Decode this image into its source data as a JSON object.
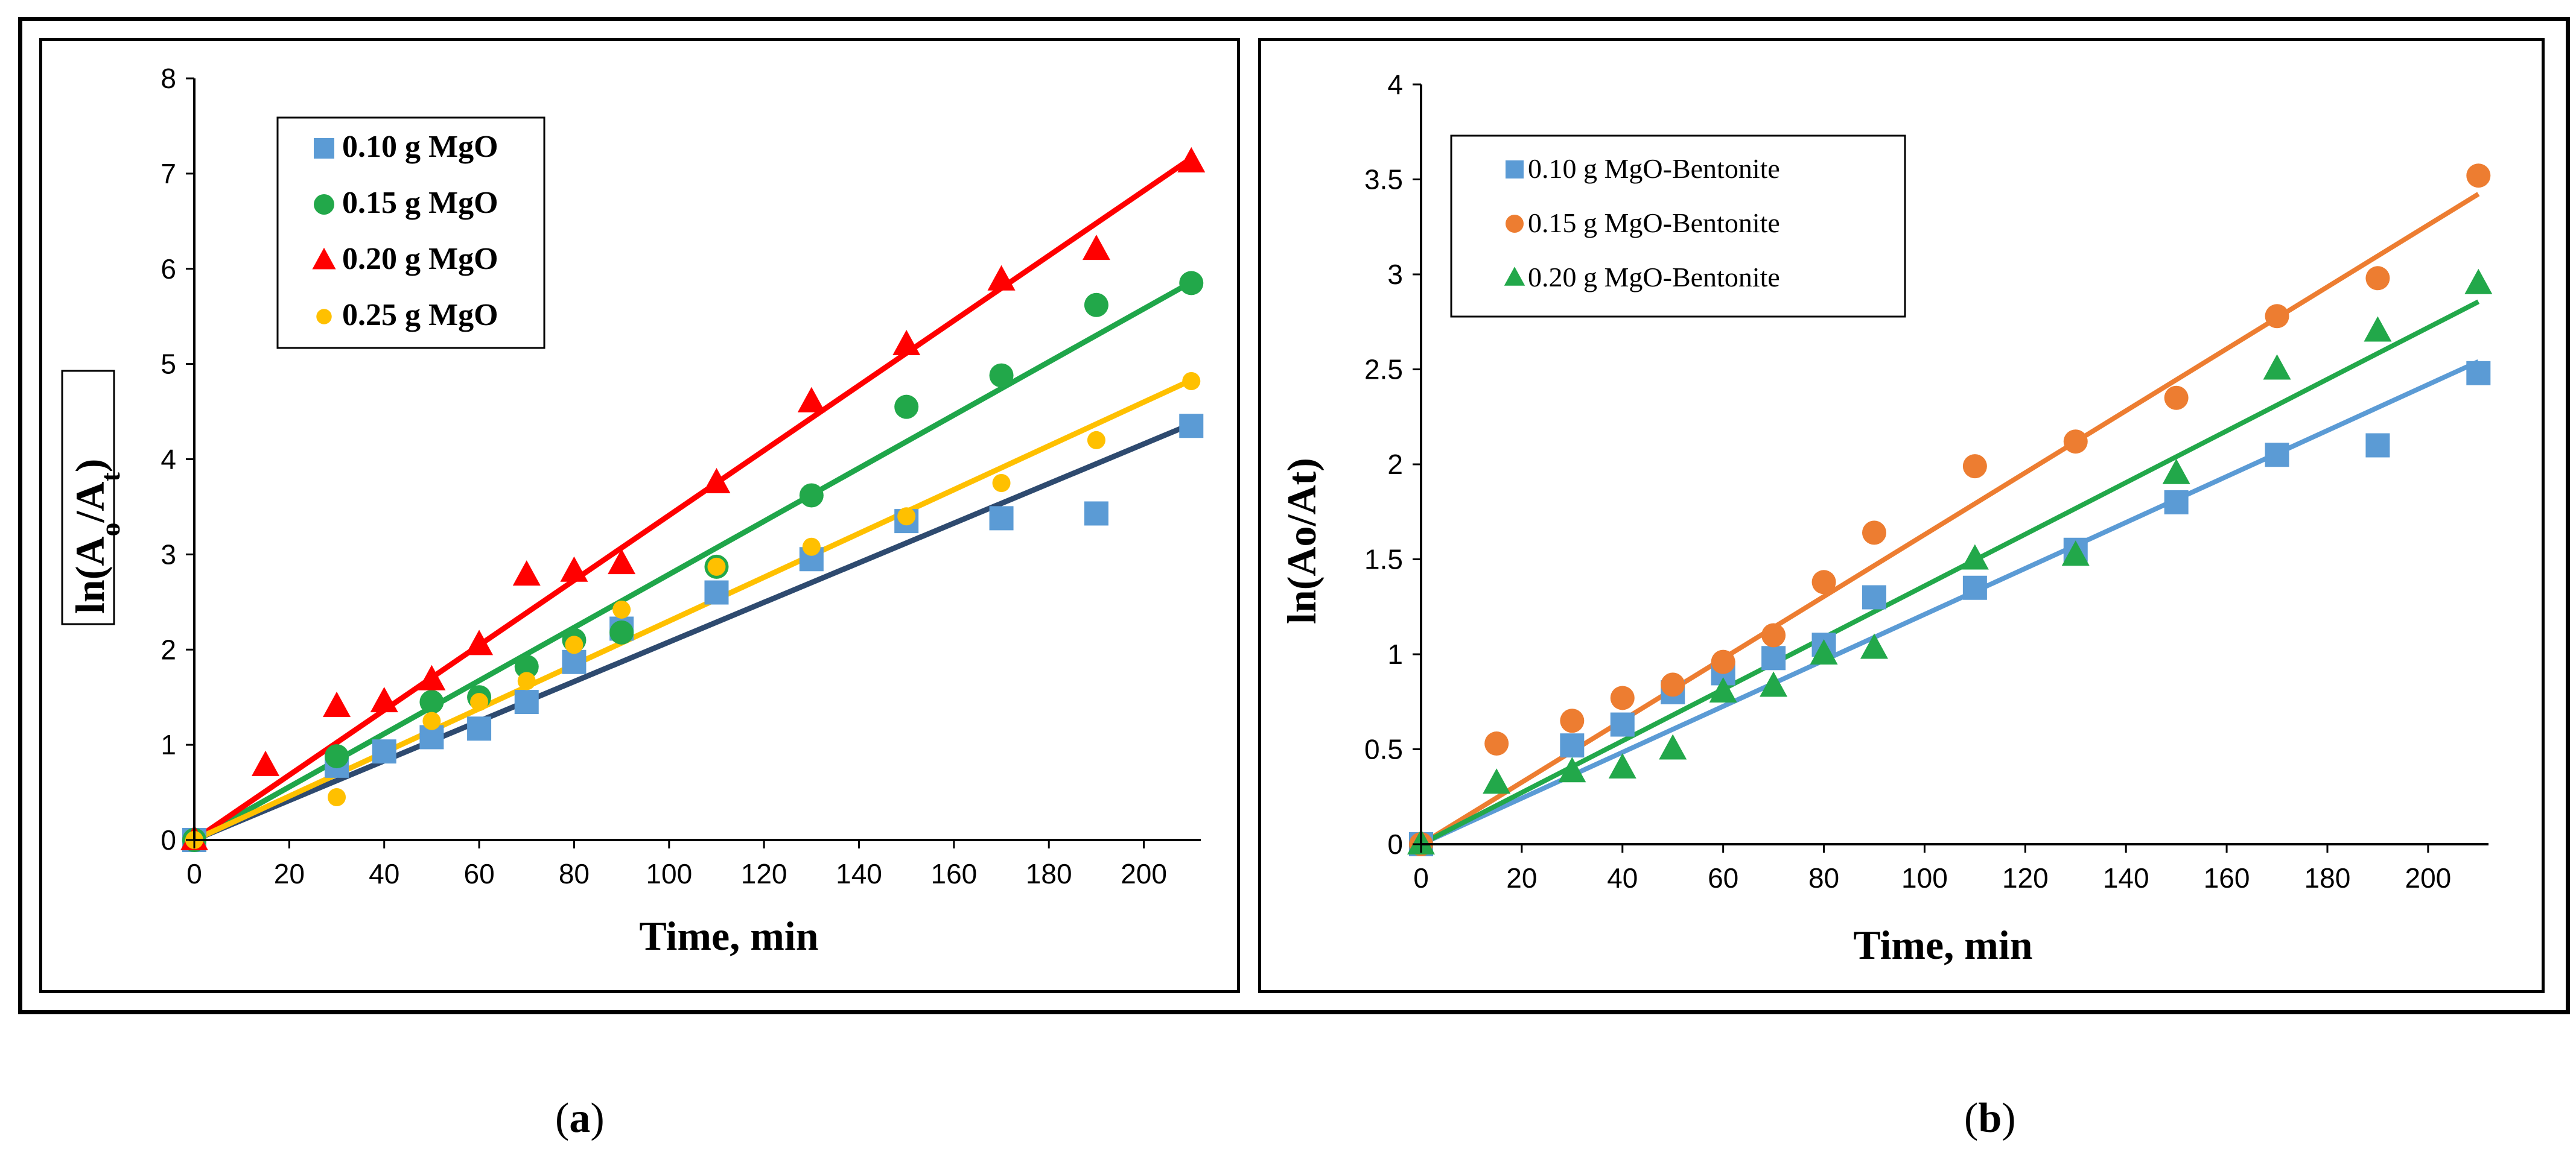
{
  "chart_data": [
    {
      "id": "a",
      "type": "scatter",
      "caption": {
        "open": "(",
        "letter": "a",
        "close": ")"
      },
      "xlabel": "Time, min",
      "ylabel": {
        "base": "ln(A",
        "sub1": "o",
        "mid": "/A",
        "sub2": "t",
        "end": ")"
      },
      "xlim": [
        0,
        212
      ],
      "ylim": [
        0,
        8
      ],
      "xticks": [
        0,
        20,
        40,
        60,
        80,
        100,
        120,
        140,
        160,
        180,
        200
      ],
      "yticks": [
        0,
        1,
        2,
        3,
        4,
        5,
        6,
        7,
        8
      ],
      "legend_position": "top-left",
      "series": [
        {
          "name": "0.10 g MgO",
          "marker": "square",
          "color": "#5B9BD5",
          "line_color": "#2E4A6F",
          "x": [
            0,
            30,
            40,
            50,
            60,
            70,
            80,
            90,
            110,
            130,
            150,
            170,
            190,
            210
          ],
          "y": [
            0,
            0.78,
            0.93,
            1.08,
            1.17,
            1.45,
            1.87,
            2.22,
            2.6,
            2.95,
            3.35,
            3.38,
            3.43,
            4.35
          ],
          "fit_slope": 0.0208
        },
        {
          "name": "0.15 g MgO",
          "marker": "circle",
          "color": "#22A84A",
          "line_color": "#1FA64A",
          "x": [
            0,
            30,
            50,
            60,
            70,
            80,
            90,
            110,
            130,
            150,
            170,
            190,
            210
          ],
          "y": [
            0,
            0.88,
            1.45,
            1.5,
            1.82,
            2.1,
            2.18,
            2.87,
            3.62,
            4.55,
            4.88,
            5.62,
            5.85
          ],
          "fit_slope": 0.0279
        },
        {
          "name": "0.20 g MgO",
          "marker": "triangle",
          "color": "#FF0000",
          "line_color": "#FF0000",
          "x": [
            0,
            15,
            30,
            40,
            50,
            60,
            70,
            80,
            90,
            110,
            130,
            150,
            170,
            190,
            210
          ],
          "y": [
            0,
            0.78,
            1.4,
            1.45,
            1.68,
            2.05,
            2.78,
            2.82,
            2.9,
            3.75,
            4.6,
            5.2,
            5.88,
            6.2,
            7.12
          ],
          "fit_slope": 0.0341
        },
        {
          "name": "0.25 g MgO",
          "marker": "dot",
          "color": "#FFC000",
          "line_color": "#FFC000",
          "x": [
            0,
            30,
            50,
            60,
            70,
            80,
            90,
            110,
            130,
            150,
            170,
            190,
            210
          ],
          "y": [
            0,
            0.45,
            1.25,
            1.45,
            1.67,
            2.05,
            2.42,
            2.87,
            3.08,
            3.4,
            3.75,
            4.2,
            4.82
          ],
          "fit_slope": 0.023
        }
      ]
    },
    {
      "id": "b",
      "type": "scatter",
      "caption": {
        "open": "(",
        "letter": "b",
        "close": ")"
      },
      "xlabel": "Time, min",
      "ylabel": "ln(Ao/At)",
      "xlim": [
        0,
        212
      ],
      "ylim": [
        0,
        4
      ],
      "xticks": [
        0,
        20,
        40,
        60,
        80,
        100,
        120,
        140,
        160,
        180,
        200
      ],
      "yticks": [
        0,
        0.5,
        1,
        1.5,
        2,
        2.5,
        3,
        3.5,
        4
      ],
      "legend_position": "top-left",
      "series": [
        {
          "name": "0.10 g MgO-Bentonite",
          "marker": "square",
          "color": "#5B9BD5",
          "line_color": "#5B9BD5",
          "x": [
            0,
            30,
            40,
            50,
            60,
            70,
            80,
            90,
            110,
            130,
            150,
            170,
            190,
            210
          ],
          "y": [
            0,
            0.52,
            0.63,
            0.8,
            0.9,
            0.98,
            1.05,
            1.3,
            1.35,
            1.55,
            1.8,
            2.05,
            2.1,
            2.48
          ],
          "fit_slope": 0.0121
        },
        {
          "name": "0.15 g MgO-Bentonite",
          "marker": "circle",
          "color": "#ED7D31",
          "line_color": "#ED7D31",
          "x": [
            0,
            15,
            30,
            40,
            50,
            60,
            70,
            80,
            90,
            110,
            130,
            150,
            170,
            190,
            210
          ],
          "y": [
            0,
            0.53,
            0.65,
            0.77,
            0.84,
            0.96,
            1.1,
            1.38,
            1.64,
            1.99,
            2.12,
            2.35,
            2.78,
            2.98,
            3.52
          ],
          "fit_slope": 0.0163
        },
        {
          "name": "0.20 g MgO-Bentonite",
          "marker": "triangle",
          "color": "#22A84A",
          "line_color": "#22A84A",
          "x": [
            0,
            15,
            30,
            40,
            50,
            60,
            70,
            80,
            90,
            110,
            130,
            150,
            170,
            190,
            210
          ],
          "y": [
            0,
            0.32,
            0.38,
            0.4,
            0.5,
            0.8,
            0.83,
            1.0,
            1.03,
            1.5,
            1.52,
            1.95,
            2.5,
            2.7,
            2.95
          ],
          "fit_slope": 0.0136
        }
      ]
    }
  ]
}
